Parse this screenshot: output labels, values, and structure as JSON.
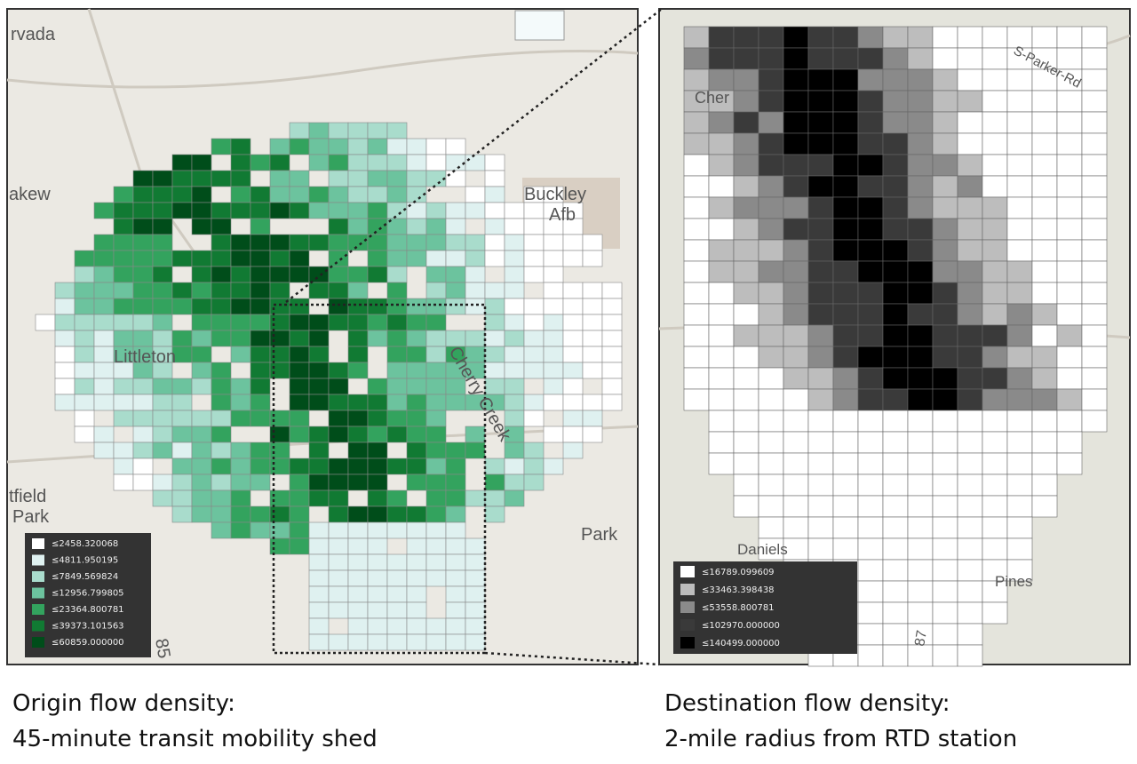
{
  "left_map": {
    "place_labels": [
      "rvada",
      "akew",
      "Buckley",
      "Afb",
      "Littleton",
      "tfield",
      "Park",
      "Park",
      "Cherry Creek",
      "85"
    ],
    "legend": [
      {
        "label": "≤2458.320068",
        "color": "#ffffff"
      },
      {
        "label": "≤4811.950195",
        "color": "#dff1f0"
      },
      {
        "label": "≤7849.569824",
        "color": "#a9dccc"
      },
      {
        "label": "≤12956.799805",
        "color": "#6cc39e"
      },
      {
        "label": "≤23364.800781",
        "color": "#33a35e"
      },
      {
        "label": "≤39373.101563",
        "color": "#117a33"
      },
      {
        "label": "≤60859.000000",
        "color": "#004d1a"
      }
    ]
  },
  "right_map": {
    "place_labels": [
      "Cher",
      "S-Parker-Rd",
      "Daniels",
      "Pines",
      "87"
    ],
    "legend": [
      {
        "label": "≤16789.099609",
        "color": "#ffffff"
      },
      {
        "label": "≤33463.398438",
        "color": "#bdbdbd"
      },
      {
        "label": "≤53558.800781",
        "color": "#8a8a8a"
      },
      {
        "label": "≤102970.000000",
        "color": "#3a3a3a"
      },
      {
        "label": "≤140499.000000",
        "color": "#000000"
      }
    ]
  },
  "captions": {
    "left": [
      "Origin flow density:",
      "45-minute transit mobility shed"
    ],
    "right": [
      "Destination flow density:",
      "2-mile radius from RTD station"
    ]
  }
}
